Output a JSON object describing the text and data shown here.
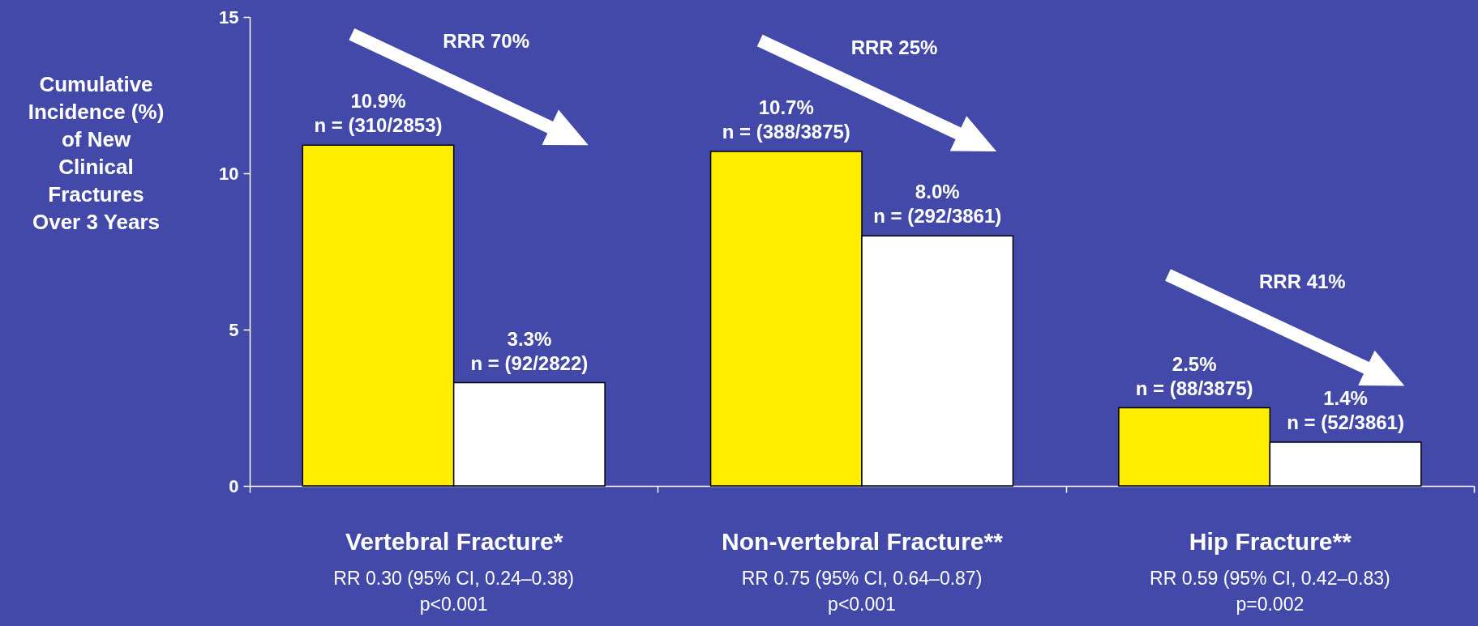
{
  "chart_data": {
    "type": "bar",
    "ylabel": "Cumulative Incidence (%) of New Clinical Fractures Over 3 Years",
    "categories": [
      "Vertebral Fracture*",
      "Non-vertebral Fracture**",
      "Hip Fracture**"
    ],
    "series": [
      {
        "color": "#ffee00",
        "values": [
          10.9,
          10.7,
          2.5
        ],
        "value_labels": [
          "10.9%\nn = (310/2853)",
          "10.7%\nn = (388/3875)",
          "2.5%\nn = (88/3875)"
        ]
      },
      {
        "color": "#ffffff",
        "values": [
          3.3,
          8.0,
          1.4
        ],
        "value_labels": [
          "3.3%\nn = (92/2822)",
          "8.0%\nn = (292/3861)",
          "1.4%\nn = (52/3861)"
        ]
      }
    ],
    "ylim": [
      0,
      15
    ],
    "yticks": [
      0,
      5,
      10,
      15
    ],
    "grid": false,
    "annotations": [
      "RRR 70%",
      "RRR 25%",
      "RRR 41%",
      "RR 0.30 (95% CI, 0.24–0.38)\np<0.001",
      "RR 0.75 (95% CI, 0.64–0.87)\np<0.001",
      "RR 0.59 (95% CI, 0.42–0.83)\np=0.002"
    ]
  }
}
